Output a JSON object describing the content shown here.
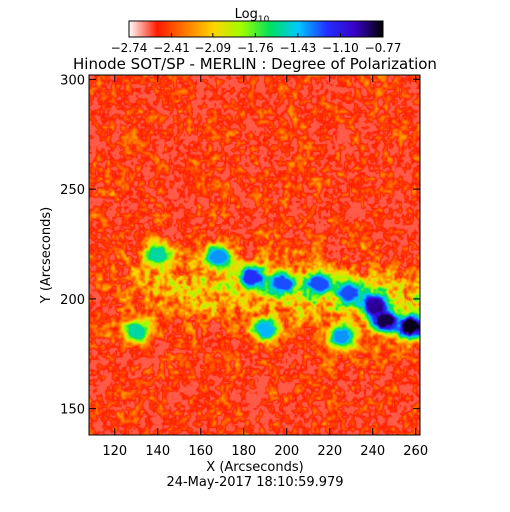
{
  "chart_data": {
    "type": "heatmap",
    "title": "Hinode SOT/SP - MERLIN : Degree of Polarization",
    "xlabel": "X (Arcseconds)",
    "ylabel": "Y (Arcseconds)",
    "footer": "24-May-2017 18:10:59.979",
    "xlim": [
      108,
      262
    ],
    "ylim": [
      138,
      302
    ],
    "x_ticks": [
      120,
      140,
      160,
      180,
      200,
      220,
      240,
      260
    ],
    "y_ticks": [
      150,
      200,
      250,
      300
    ],
    "colorbar": {
      "label_main": "Log",
      "label_sub": "10",
      "range": [
        -2.74,
        -0.77
      ],
      "tick_labels": [
        "-2.74",
        "-2.41",
        "-2.09",
        "-1.76",
        "-1.43",
        "-1.10",
        "-0.77"
      ],
      "colors": [
        "#ffffff",
        "#ff1a00",
        "#ff7a00",
        "#ffd400",
        "#9cff00",
        "#00e060",
        "#00c8ff",
        "#2030ff",
        "#3a00c8",
        "#000000"
      ]
    },
    "features": [
      {
        "x": 184,
        "y": 210,
        "level": -1.2
      },
      {
        "x": 168,
        "y": 219,
        "level": -1.35
      },
      {
        "x": 198,
        "y": 207,
        "level": -1.25
      },
      {
        "x": 215,
        "y": 207,
        "level": -1.25
      },
      {
        "x": 229,
        "y": 203,
        "level": -1.25
      },
      {
        "x": 241,
        "y": 197,
        "level": -0.95
      },
      {
        "x": 246,
        "y": 190,
        "level": -0.85
      },
      {
        "x": 258,
        "y": 187,
        "level": -0.8
      },
      {
        "x": 226,
        "y": 183,
        "level": -1.35
      },
      {
        "x": 190,
        "y": 186,
        "level": -1.4
      },
      {
        "x": 140,
        "y": 220,
        "level": -1.55
      },
      {
        "x": 130,
        "y": 185,
        "level": -1.55
      }
    ]
  }
}
